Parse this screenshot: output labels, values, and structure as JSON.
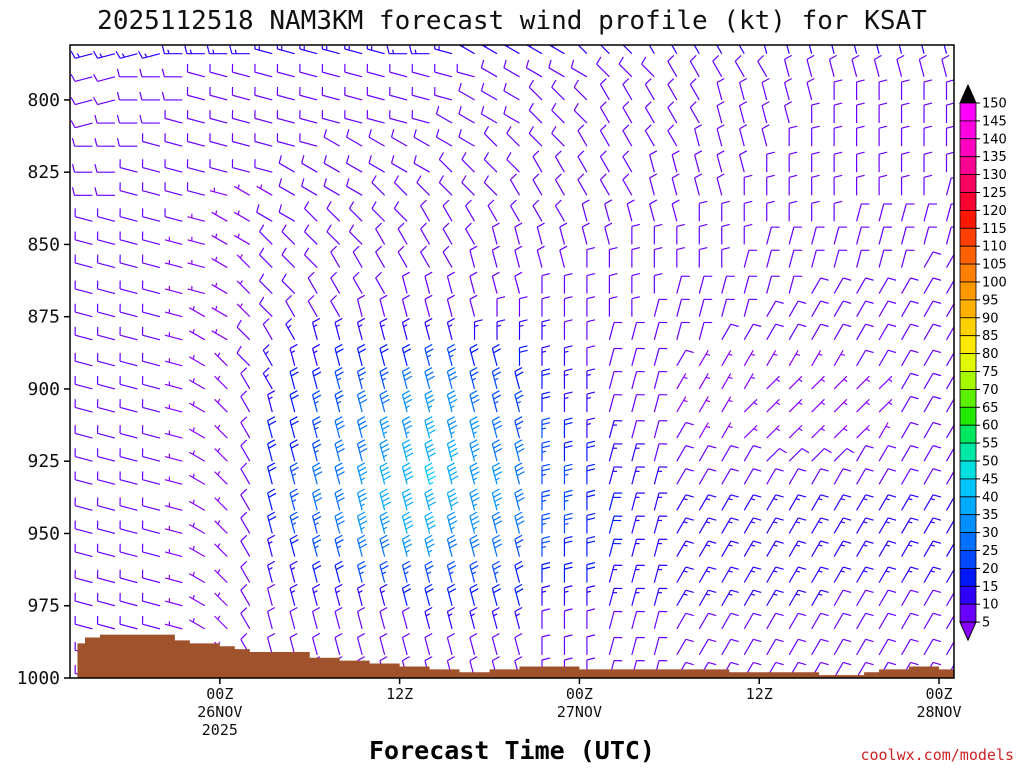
{
  "credit": "coolwx.com/models",
  "chart_data": {
    "type": "wind-barb time-height section",
    "title": "2025112518 NAM3KM forecast wind profile (kt) for KSAT",
    "xlabel": "Forecast Time (UTC)",
    "ylabel": "",
    "x_unit": "hours after 2025-11-25 18Z",
    "x_range": [
      -4,
      55
    ],
    "y_unit": "hPa",
    "y_range": [
      781,
      1000
    ],
    "y_ticks": [
      800,
      825,
      850,
      875,
      900,
      925,
      950,
      975,
      1000
    ],
    "x_ticks": [
      {
        "hour": 6,
        "lines": [
          "00Z",
          "26NOV",
          "2025"
        ]
      },
      {
        "hour": 18,
        "lines": [
          "12Z"
        ]
      },
      {
        "hour": 30,
        "lines": [
          "00Z",
          "27NOV"
        ]
      },
      {
        "hour": 42,
        "lines": [
          "12Z"
        ]
      },
      {
        "hour": 54,
        "lines": [
          "00Z",
          "28NOV"
        ]
      }
    ],
    "grid": false,
    "legend": "right colorbar",
    "colorbar": {
      "levels": [
        5,
        10,
        15,
        20,
        25,
        30,
        35,
        40,
        45,
        50,
        55,
        60,
        65,
        70,
        75,
        80,
        85,
        90,
        95,
        100,
        105,
        110,
        115,
        120,
        125,
        130,
        135,
        140,
        145,
        150
      ],
      "colors": [
        "#8a00ff",
        "#6a00ff",
        "#2d00ff",
        "#0018ff",
        "#0048ff",
        "#0070ff",
        "#0090ff",
        "#00aaff",
        "#00c6ff",
        "#00e0e0",
        "#00e8a8",
        "#00e860",
        "#22e800",
        "#5cf000",
        "#a8f800",
        "#e0f800",
        "#ffe800",
        "#ffd000",
        "#ffb000",
        "#ff9a00",
        "#ff8000",
        "#ff6000",
        "#ff4000",
        "#ff1800",
        "#ff0030",
        "#ff0060",
        "#ff0090",
        "#ff00c0",
        "#ff00e0",
        "#ff00ff"
      ],
      "over_color": "#000000",
      "under_color": "#8a00ff"
    },
    "terrain": {
      "color": "#a0522d",
      "hours": [
        -3.5,
        -3,
        -2,
        0,
        2,
        3,
        4,
        6,
        7,
        8,
        10,
        12,
        14,
        16,
        18,
        20,
        22,
        24,
        26,
        28,
        30,
        34,
        36,
        40,
        42,
        44,
        46,
        48,
        49,
        50,
        52,
        54,
        56
      ],
      "pressure": [
        988,
        986,
        985,
        985,
        985,
        987,
        988,
        989,
        990,
        991,
        991,
        993,
        994,
        995,
        996,
        997,
        998,
        997,
        996,
        996,
        997,
        997,
        997,
        998,
        998,
        998,
        999,
        999,
        998,
        997,
        996,
        997,
        997
      ]
    },
    "barb_hours_start": -4,
    "barb_hours_step": 1.5,
    "barb_pressure_levels": [
      784,
      792,
      800,
      808,
      816,
      825,
      833,
      842,
      850,
      858,
      867,
      875,
      883,
      892,
      900,
      908,
      917,
      925,
      933,
      942,
      950,
      958,
      967,
      975,
      983,
      992,
      1000
    ],
    "barb_encoding": "each row = one pressure level, each 2-char token = one time step: direction letter a-x (a=0deg, step 15deg) + speed code 0-9/a-z (base-36, kt/5); '..' = no barb",
    "barb_rows": [
      "r3r3r3r3r3s3s3s3s3t3t3t3t3t3t3s3s3t3u3u3u3u3u3v3v3v3w3w3w3w3w3x3x3x3x3x3x3x3x3x3x3",
      "r2r2r2s2s2s2t2t2t2t2t2t2t2t2t2t2t2t2t2u2u2u2u2u2v2v2v2w2w2w2w2w2x2x2x2x2x2x2x2x2x2",
      "r2r2r2s2s2s2t2t2t2t2t2t2t2t2t2t2t2t2u2u2u2v2v2v2w2w2w2w2w2x2x2x2x2x2a2a2a2a2a2a2a2",
      "r2r2s2s2s2t2t2t2t2t2t2t2t2t2t2t2t2u2u2u2u2v2v2v2w2w2w2w2w2x2x2x2x2a2a2a2a2a2a2a2a2",
      "s2s2s2s2t2t2t2t2t2t2t2t2u2u2u2u2u2u2u2v2v2v2v2w2w2w2w2w2x2x2x2x2a2a2a2a2a2a2a2a2a2",
      "s2s2s2t2t2t2t2t2t2t2u2u2u2u2u2u2u2v2v2v2v2w2w2w2w2w2x2x2x2x2x2a2a2a2a2a2a2a2a2a2a2",
      "s2s2s2t2t2t2t2t1u1u1u2u2u2u2v2v2v2v2v2v2w2w2w2w2w2w2x2x2x2x2a2a2a2a2a2a2a2a2a2b2b2",
      "t2t2t2t2t2t2t1u1u1u2u2v2v2v2v2v2w2w2w2w2w2w2w2x2x2x2x2x2a2a2a2a2a2a2a2b2b2b2b2b2b2",
      "t2t2t2t2t2t1t1u1u1v2v2v2v2v2w2w2w2w2w2x2x2x2x2x2x2a2a2a2a2a2a2b2b2b2b2b2b2b2b2b2b2",
      "t2t2t2t2t2t1t1u1v1v2v2v2w2w2w2w2w2w2x2x2x2x2x2a2a2a2a2a2a2a2b2b2b2b2b2b2b2b2c2c2c2",
      "t2t2t2t2t2t1t1u1v1v2v2w2w2w2w2x2x2x2x2x2x2a2a2a2a2a2a2b2b2b2b2b2b2c2c2c2c2c2c2c2c2",
      "t2t2t2t2t2t1u1u1v1v2w2w2w2x2x2x2x2x2x2a2a2a2a2a2a2a2b2b2b2b2b2c2c2c2c2c2c2c2c2c2c2",
      "t2t2t2t2t2t1u1u1v2w2w3x3x3x3x3x3x3x3a3a3a3a3a2a2b2b2b2b2b2c2c2c2c2c2c2c2c2c2c2c2c2",
      "t2t2t2t2t2t1u1v1v2w3x3x3x4x4x4x4x5x5x4x4a4a3a3a2b2b2b2c2c1c1c1c1c1c1c1c2c2c2c2c2c2",
      "t2t2t2t2t2t1u1v1w2w3x4x4x5x5x5x6x6x6x5x5x4a4a3a3b2b2b2c1c1c1c1d1d1d1d1d1d1c2c2c2c2",
      "t2t2t2t2t2t1u1v1w2x3x4x5x5x6x6x7x7x7x6x5x5a4a3a3b2b2b2c1c1c1d1d1d1d1d1d1d1c2c2c2c2",
      "t2t2t2t2t2t1u1v1w2x4x4x5x6x6x7x7x8x7x7x6x5a5a4a3b3b2b2c2c1c1d1d1d1d1d1d1c1c2c2c2c2",
      "t2t2t2t2t2t1u1v1w2x4x4x5x6x6x7x8x8x8x7x6x6a5a4a4b3b3b2c2c2c2c2d2d2d2d2c2c2c2c2c2c2",
      "t2t2t2t2t2t1u1v1w2x4x5x6x6x7x8x8x9x8x7x7x6a5a5a4b3b3b3c2c2c2c2c2c2c2c2c2c2c2c2c2c2",
      "t2t2t2t2t2t1u1v1w2x4x5x6x6x7x8x8x8x8x7x7x6a5a5a4b4b3b3c3c3c3c3c3c3c3c3c3c3c3c3c3c3",
      "t2t2t2t2t2t1u1v1w2x4x5x5x6x7x7x8x8x7x7x6x6a5a5a4b4b3b3c3c3c3c3c3c3c3c3c3c3c3c3c3c3",
      "t2t2t2t2t2t1u1v1w2x3x4x5x5x6x6x7x7x6x6x6x5a5a4a4b4b3b3c3c3c3c3c3c3c3c3c3c3c3c3c3c3",
      "t2t2t2t2t2t1u1v1w2x3x3x4x4x5x5x5x5x5x5x5x4a4a4a4b3b3b3c3c3c3c3c3c3c3c3c3c3c3c3c3c3",
      "t2t2t2t2t2t1u1v1w2x2x3x3x3x3x3x4x4x4x4x4x4a3a3a3b3b3b3c3c3c3c3c3c3c3c2c2c2c2c2c2c2",
      "t2t2t2t2t2t1u1v1w2x2x2x2x2x2x2x2x3x3x3x3x3a2a2a2b2b2b2c2c2c2c2c2c2c2c2c2c2c2c2c2c2",
      "t2t2t2t2t2t1u1v1w2x2x2x2x2x2x2x2x2x2x2x2x2a2a2a2b2b2b2c2c2c2c2c2c2c2c2c2c2c2c2c2c2",
      "t2t2t2t2t2t1u1v1w2x2x2x2x2x2x2x2x2x2x2x2x2a2a2a2b2b2b2c2c2c2c2c2c2c2c2c2c2c2c2c2c2"
    ]
  }
}
